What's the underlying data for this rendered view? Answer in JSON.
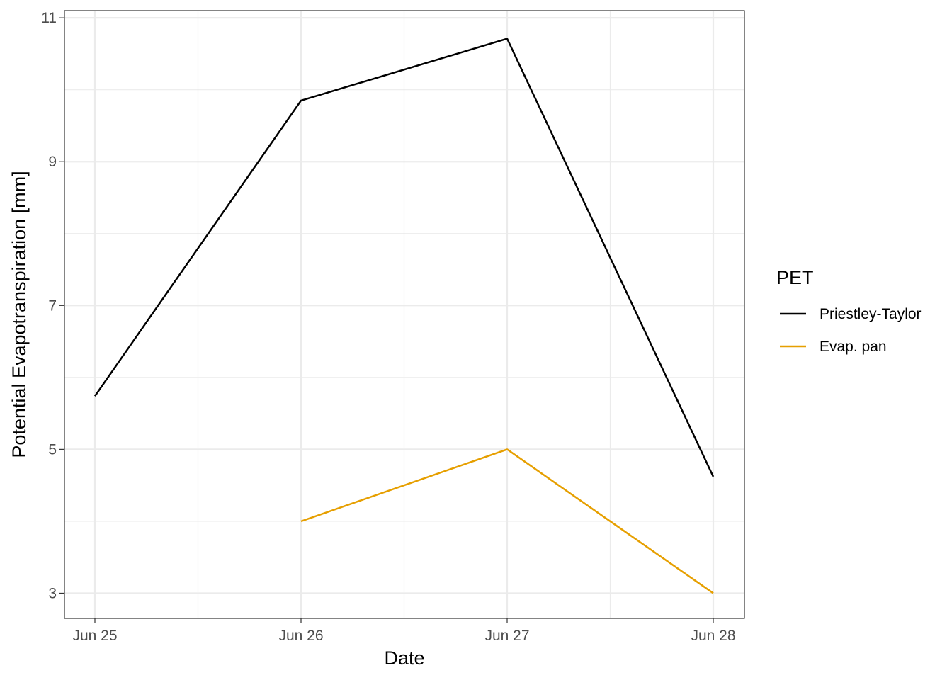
{
  "chart_data": {
    "type": "line",
    "xlabel": "Date",
    "ylabel": "Potential Evapotranspiration [mm]",
    "x": [
      "Jun 25",
      "Jun 26",
      "Jun 27",
      "Jun 28"
    ],
    "x_tick_labels": [
      "Jun 25",
      "Jun 26",
      "Jun 27",
      "Jun 28"
    ],
    "y_ticks": [
      3,
      5,
      7,
      9,
      11
    ],
    "y_tick_labels": [
      "3",
      "5",
      "7",
      "9",
      "11"
    ],
    "ylim": [
      2.65,
      11.1
    ],
    "grid": true,
    "legend": {
      "title": "PET",
      "position": "right"
    },
    "series": [
      {
        "name": "Priestley-Taylor",
        "color": "#000000",
        "x": [
          "Jun 25",
          "Jun 26",
          "Jun 27",
          "Jun 28"
        ],
        "values": [
          5.74,
          9.85,
          10.71,
          4.62
        ]
      },
      {
        "name": "Evap. pan",
        "color": "#E69F00",
        "x": [
          "Jun 26",
          "Jun 27",
          "Jun 28"
        ],
        "values": [
          4.0,
          5.0,
          3.0
        ]
      }
    ]
  }
}
